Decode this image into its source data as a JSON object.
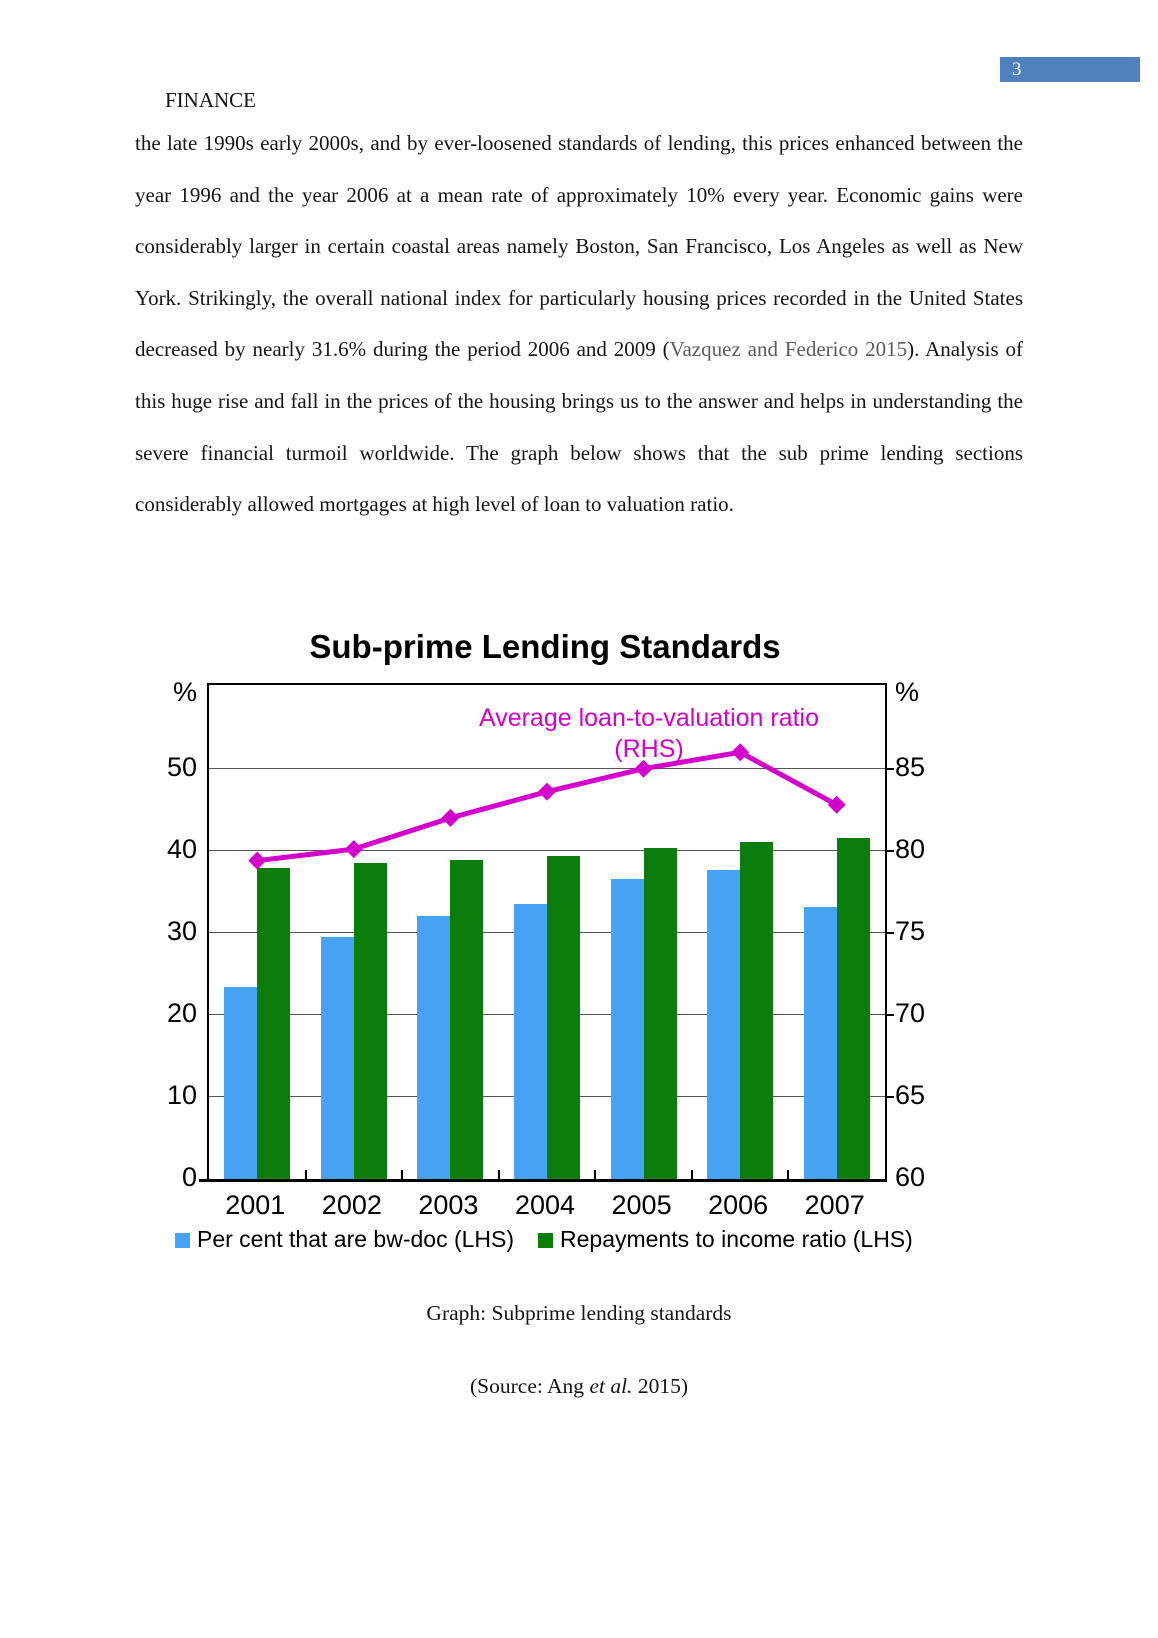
{
  "page": {
    "number": "3",
    "header": "FINANCE",
    "paragraph": {
      "before_citation": "the late 1990s early 2000s, and by ever-loosened standards of lending, this prices enhanced between the year 1996 and the year 2006 at a mean rate of approximately 10% every year. Economic gains were considerably larger in certain coastal areas namely Boston, San Francisco, Los Angeles as well as New York. Strikingly, the overall national index for particularly housing prices recorded in the United States decreased by nearly 31.6% during the period 2006 and 2009 (",
      "citation": "Vazquez and Federico 2015",
      "after_citation": "). Analysis of this huge rise and fall in the prices of the housing brings us to the answer and helps in understanding the severe financial turmoil worldwide. The graph below shows that the sub prime lending sections considerably allowed mortgages at high level of loan to valuation ratio."
    },
    "caption": "Graph: Subprime lending standards",
    "source": {
      "prefix": "(Source: Ang ",
      "italic": "et al.",
      "suffix": " 2015)"
    }
  },
  "chart_data": {
    "type": "bar",
    "title": "Sub-prime Lending Standards",
    "categories": [
      "2001",
      "2002",
      "2003",
      "2004",
      "2005",
      "2006",
      "2007"
    ],
    "series": [
      {
        "name": "Per cent that are bw-doc (LHS)",
        "type": "bar",
        "axis": "left",
        "color": "#46a2f3",
        "values": [
          23.4,
          29.5,
          32.1,
          33.5,
          36.5,
          37.6,
          33.2
        ]
      },
      {
        "name": "Repayments to income ratio (LHS)",
        "type": "bar",
        "axis": "left",
        "color": "#0a7d0a",
        "values": [
          37.9,
          38.5,
          38.9,
          39.4,
          40.3,
          41.1,
          41.5
        ]
      },
      {
        "name": "Average loan-to-valuation ratio (RHS)",
        "type": "line",
        "axis": "right",
        "color": "#d400cc",
        "values": [
          79.4,
          80.1,
          82.0,
          83.6,
          85.0,
          86.0,
          82.8
        ]
      }
    ],
    "annotation": {
      "line1": "Average loan-to-valuation ratio",
      "line2": "(RHS)"
    },
    "left_axis": {
      "unit": "%",
      "ticks": [
        0,
        10,
        20,
        30,
        40,
        50
      ],
      "range": [
        0,
        60.2
      ]
    },
    "right_axis": {
      "unit": "%",
      "ticks": [
        60,
        65,
        70,
        75,
        80,
        85
      ],
      "range": [
        60,
        90.1
      ]
    },
    "grid": true,
    "legend_position": "bottom",
    "accent_colors": {
      "page_number_bar": "#4f81bd",
      "citation_text": "#5a5a5a"
    }
  }
}
